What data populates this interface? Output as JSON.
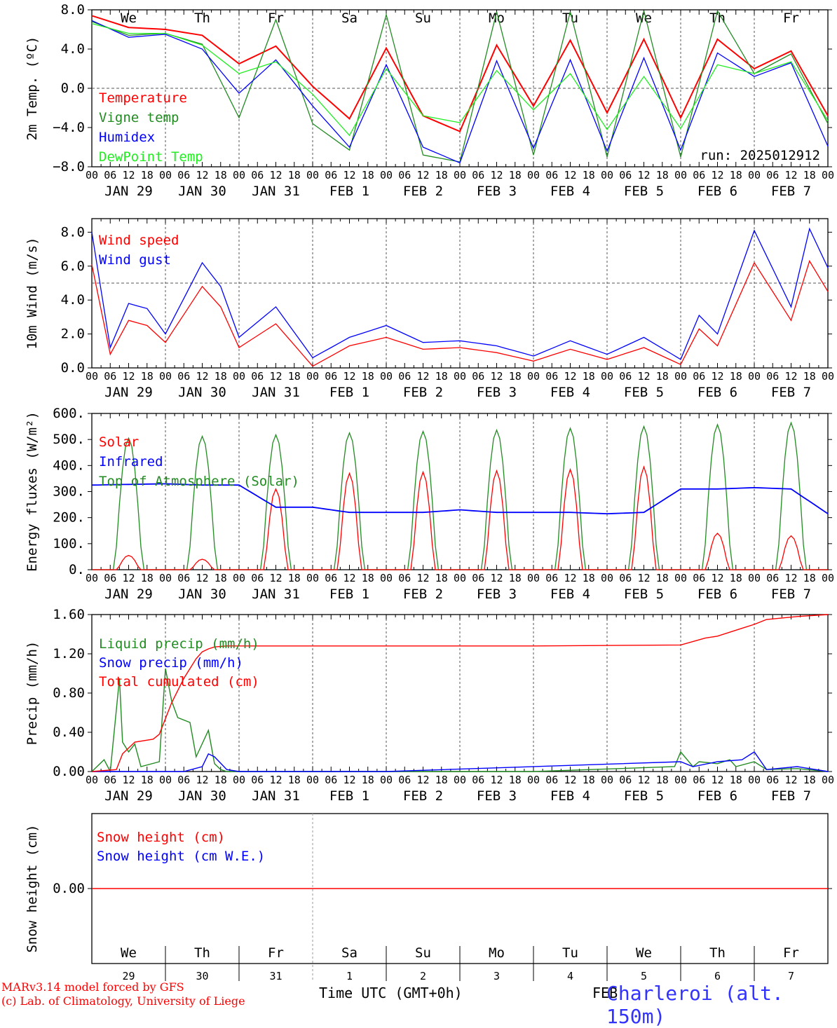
{
  "run_label": "run: 2025012912",
  "weekdays": [
    {
      "label": "We",
      "color": "#000000"
    },
    {
      "label": "Th",
      "color": "#000000"
    },
    {
      "label": "Fr",
      "color": "#000000"
    },
    {
      "label": "Sa",
      "color": "#ff0000"
    },
    {
      "label": "Su",
      "color": "#ff0000"
    },
    {
      "label": "Mo",
      "color": "#000000"
    },
    {
      "label": "Tu",
      "color": "#000000"
    },
    {
      "label": "We",
      "color": "#000000"
    },
    {
      "label": "Th",
      "color": "#000000"
    },
    {
      "label": "Fr",
      "color": "#000000"
    }
  ],
  "date_labels": [
    "JAN 29",
    "JAN 30",
    "JAN 31",
    "FEB  1",
    "FEB  2",
    "FEB  3",
    "FEB  4",
    "FEB  5",
    "FEB  6",
    "FEB  7"
  ],
  "hour_labels": [
    "00",
    "06",
    "12",
    "18"
  ],
  "final_hour_label": "00",
  "bottom_day_numbers": [
    "29",
    "30",
    "31",
    "1",
    "2",
    "3",
    "4",
    "5",
    "6",
    "7"
  ],
  "x_axis_title": "Time UTC (GMT+0h)",
  "x_axis_month_label": "FEB",
  "footer": {
    "line1": "MARv3.14 model forced by GFS",
    "line2": "(c) Lab. of Climatology, University of Liege",
    "station": "Charleroi (alt. 150m)"
  },
  "colors": {
    "red": "#ff0000",
    "green": "#228b22",
    "blue": "#0000ff",
    "light_green": "#22ee22",
    "gray_dash": "#555555"
  },
  "chart_data": [
    {
      "type": "line",
      "ylabel": "2m Temp. (ºC)",
      "ylim": [
        -8,
        8
      ],
      "yticks": [
        -8,
        -4,
        0,
        4,
        8
      ],
      "ytick_labels": [
        "−8.0",
        "−4.0",
        "0.0",
        "4.0",
        "8.0"
      ],
      "ref_line": 0,
      "x": [
        0,
        12,
        24,
        36,
        48,
        60,
        72,
        84,
        96,
        108,
        120,
        132,
        144,
        156,
        168,
        180,
        192,
        204,
        216,
        228,
        240
      ],
      "series": [
        {
          "name": "Temperature",
          "color": "#ff0000",
          "values": [
            7.4,
            6.2,
            6.0,
            5.4,
            2.5,
            4.3,
            0.2,
            -3.1,
            4.1,
            -2.8,
            -4.4,
            4.4,
            -1.8,
            4.9,
            -2.5,
            5.0,
            -3.0,
            5.0,
            2.0,
            3.8,
            -2.8
          ]
        },
        {
          "name": "Vigne temp",
          "color": "#228b22",
          "values": [
            6.8,
            5.4,
            5.6,
            4.5,
            -3.0,
            7.0,
            -3.6,
            -6.3,
            7.5,
            -6.8,
            -7.5,
            7.8,
            -6.8,
            7.8,
            -7.0,
            7.9,
            -7.0,
            7.9,
            1.5,
            3.5,
            -3.6
          ]
        },
        {
          "name": "Humidex",
          "color": "#0000ff",
          "values": [
            6.9,
            5.2,
            5.5,
            4.0,
            -0.5,
            2.9,
            -1.8,
            -6.0,
            2.4,
            -6.0,
            -7.6,
            2.8,
            -6.1,
            2.9,
            -6.4,
            3.1,
            -6.3,
            3.6,
            1.2,
            2.6,
            -5.9
          ]
        },
        {
          "name": "DewPoint Temp",
          "color": "#22ee22",
          "values": [
            6.6,
            5.6,
            5.6,
            4.4,
            1.5,
            2.7,
            -0.6,
            -4.8,
            2.0,
            -2.8,
            -3.5,
            1.8,
            -2.2,
            1.5,
            -4.2,
            1.2,
            -4.1,
            2.4,
            1.5,
            2.7,
            -3.3
          ]
        }
      ]
    },
    {
      "type": "line",
      "ylabel": "10m Wind (m/s)",
      "ylim": [
        0,
        8.8
      ],
      "yticks": [
        0,
        2,
        4,
        6,
        8
      ],
      "ytick_labels": [
        "0.0",
        "2.0",
        "4.0",
        "6.0",
        "8.0"
      ],
      "ref_line": 5,
      "x": [
        0,
        6,
        12,
        18,
        24,
        36,
        42,
        48,
        60,
        72,
        84,
        96,
        108,
        120,
        132,
        144,
        156,
        168,
        180,
        192,
        198,
        204,
        216,
        228,
        234,
        240
      ],
      "series": [
        {
          "name": "Wind speed",
          "color": "#ff0000",
          "values": [
            6.1,
            0.8,
            2.8,
            2.5,
            1.5,
            4.8,
            3.6,
            1.2,
            2.6,
            0.1,
            1.3,
            1.8,
            1.1,
            1.2,
            0.9,
            0.4,
            1.1,
            0.5,
            1.2,
            0.2,
            2.3,
            1.3,
            6.2,
            2.8,
            6.3,
            4.5
          ]
        },
        {
          "name": "Wind gust",
          "color": "#0000ff",
          "values": [
            8.0,
            1.2,
            3.8,
            3.5,
            2.0,
            6.2,
            4.8,
            1.8,
            3.6,
            0.6,
            1.8,
            2.5,
            1.5,
            1.6,
            1.3,
            0.7,
            1.6,
            0.8,
            1.8,
            0.5,
            3.1,
            2.0,
            8.1,
            3.6,
            8.2,
            5.9
          ]
        }
      ]
    },
    {
      "type": "line",
      "ylabel": "Energy fluxes (W/m²)",
      "ylim": [
        0,
        600
      ],
      "yticks": [
        0,
        100,
        200,
        300,
        400,
        500,
        600
      ],
      "ytick_labels": [
        "0.",
        "100.",
        "200.",
        "300.",
        "400.",
        "500.",
        "600."
      ],
      "ref_line": null,
      "x_daily_noon": [
        12,
        36,
        60,
        84,
        108,
        132,
        156,
        180,
        204,
        228
      ],
      "series": [
        {
          "name": "Solar",
          "color": "#ff0000",
          "daily_peak": [
            55,
            40,
            310,
            370,
            375,
            380,
            385,
            395,
            140,
            130
          ]
        },
        {
          "name": "Infrared",
          "color": "#0000ff",
          "x": [
            0,
            24,
            36,
            48,
            60,
            72,
            84,
            96,
            108,
            120,
            132,
            144,
            156,
            168,
            180,
            192,
            204,
            216,
            228,
            240
          ],
          "values": [
            325,
            330,
            325,
            325,
            240,
            240,
            220,
            220,
            220,
            230,
            220,
            220,
            220,
            215,
            220,
            310,
            310,
            315,
            310,
            215
          ]
        },
        {
          "name": "Top of Atmosphere (Solar)",
          "color": "#228b22",
          "daily_peak": [
            505,
            512,
            518,
            525,
            531,
            536,
            543,
            550,
            557,
            564
          ]
        }
      ]
    },
    {
      "type": "line",
      "ylabel": "Precip (mm/h)",
      "ylim": [
        0,
        1.6
      ],
      "yticks": [
        0,
        0.4,
        0.8,
        1.2,
        1.6
      ],
      "ytick_labels": [
        "0.00",
        "0.40",
        "0.80",
        "1.20",
        "1.60"
      ],
      "ref_line": null,
      "series": [
        {
          "name": "Liquid precip (mm/h)",
          "color": "#228b22",
          "x": [
            0,
            4,
            6,
            9,
            10,
            12,
            14,
            16,
            22,
            24,
            26,
            28,
            32,
            34,
            38,
            40,
            42,
            44,
            48,
            60,
            96,
            120,
            144,
            190,
            192,
            196,
            198,
            204,
            208,
            210,
            216,
            220,
            230,
            240
          ],
          "values": [
            0,
            0.12,
            0,
            0.95,
            0.3,
            0.2,
            0.28,
            0.05,
            0.1,
            1.05,
            0.72,
            0.55,
            0.5,
            0.15,
            0.42,
            0.08,
            0.02,
            0,
            0,
            0,
            0,
            0,
            0,
            0.05,
            0.2,
            0.05,
            0.1,
            0.08,
            0.12,
            0.05,
            0.1,
            0.02,
            0.03,
            0
          ]
        },
        {
          "name": "Snow precip (mm/h)",
          "color": "#0000ff",
          "x": [
            0,
            30,
            36,
            38,
            40,
            44,
            48,
            96,
            192,
            196,
            204,
            212,
            216,
            220,
            230,
            240
          ],
          "values": [
            0,
            0,
            0.05,
            0.18,
            0.15,
            0.02,
            0,
            0,
            0.1,
            0.05,
            0.1,
            0.12,
            0.2,
            0.02,
            0.05,
            0
          ]
        },
        {
          "name": "Total cumulated (cm)",
          "color": "#ff0000",
          "x": [
            0,
            8,
            10,
            14,
            20,
            22,
            26,
            30,
            34,
            36,
            38,
            40,
            44,
            48,
            60,
            96,
            144,
            192,
            200,
            204,
            212,
            216,
            220,
            230,
            240
          ],
          "values": [
            0,
            0.02,
            0.18,
            0.3,
            0.33,
            0.38,
            0.7,
            0.95,
            1.15,
            1.22,
            1.25,
            1.27,
            1.28,
            1.28,
            1.28,
            1.28,
            1.28,
            1.29,
            1.36,
            1.38,
            1.46,
            1.5,
            1.55,
            1.58,
            1.6
          ]
        }
      ]
    },
    {
      "type": "line",
      "ylabel": "Snow height (cm)",
      "ylim": [
        -1,
        1
      ],
      "yticks": [
        0
      ],
      "ytick_labels": [
        "0.00"
      ],
      "series": [
        {
          "name": "Snow height (cm)",
          "color": "#ff0000",
          "x": [
            0,
            240
          ],
          "values": [
            0,
            0
          ]
        },
        {
          "name": "Snow height (cm W.E.)",
          "color": "#0000ff",
          "x": [
            0,
            240
          ],
          "values": [
            0,
            0
          ]
        }
      ]
    }
  ]
}
